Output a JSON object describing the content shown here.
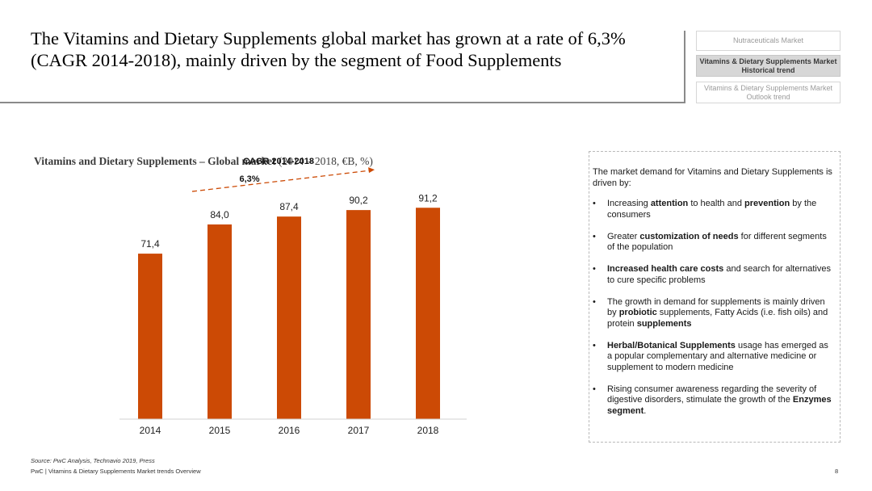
{
  "header": {
    "title": "The Vitamins and Dietary Supplements global market has grown at a rate of 6,3% (CAGR 2014-2018), mainly driven by the segment of Food Supplements"
  },
  "nav": {
    "items": [
      {
        "label": "Nutraceuticals Market"
      },
      {
        "label": "Vitamins & Dietary Supplements Market\nHistorical trend"
      },
      {
        "label": "Vitamins & Dietary Supplements Market\nOutlook trend"
      }
    ]
  },
  "chart_title": {
    "bold": "Vitamins and Dietary Supplements – Global market",
    "normal": " (2014 – 2018, €B, %)"
  },
  "chart_data": {
    "type": "bar",
    "title": "Vitamins and Dietary Supplements – Global market (2014 – 2018, €B, %)",
    "categories": [
      "2014",
      "2015",
      "2016",
      "2017",
      "2018"
    ],
    "values": [
      71.4,
      84.0,
      87.4,
      90.2,
      91.2
    ],
    "value_labels": [
      "71,4",
      "84,0",
      "87,4",
      "90,2",
      "91,2"
    ],
    "ylim": [
      0,
      100
    ],
    "bar_color": "#cc4a05",
    "grid": false,
    "annotation": {
      "label": "CAGR 2014-2018",
      "value": "6,3%",
      "color": "#cc4a05"
    }
  },
  "panel": {
    "intro": "The market demand for Vitamins and Dietary Supplements is driven by:",
    "bullet_char": "•",
    "bullets": [
      {
        "parts": [
          {
            "t": "Increasing "
          },
          {
            "t": "attention",
            "b": true
          },
          {
            "t": " to health and "
          },
          {
            "t": "prevention",
            "b": true
          },
          {
            "t": " by the consumers"
          }
        ]
      },
      {
        "parts": [
          {
            "t": "Greater "
          },
          {
            "t": "customization of needs",
            "b": true
          },
          {
            "t": " for different segments of the population"
          }
        ]
      },
      {
        "parts": [
          {
            "t": "Increased health care costs",
            "b": true
          },
          {
            "t": " and search for alternatives to cure specific problems"
          }
        ]
      },
      {
        "parts": [
          {
            "t": "The growth in demand for supplements is mainly driven by "
          },
          {
            "t": "probiotic",
            "b": true
          },
          {
            "t": " supplements, Fatty Acids (i.e. fish oils) and protein "
          },
          {
            "t": "supplements",
            "b": true
          }
        ]
      },
      {
        "parts": [
          {
            "t": "Herbal/Botanical Supplements",
            "b": true
          },
          {
            "t": " usage has emerged as a popular complementary and alternative medicine or supplement to modern medicine"
          }
        ]
      },
      {
        "parts": [
          {
            "t": "Rising consumer awareness regarding the severity of digestive disorders, stimulate the growth of the "
          },
          {
            "t": "Enzymes segment",
            "b": true
          },
          {
            "t": "."
          }
        ]
      }
    ]
  },
  "footer": {
    "source": "Source: PwC Analysis, Technavio 2019, Press",
    "text": "PwC | Vitamins & Dietary Supplements Market trends Overview",
    "page": "8"
  }
}
